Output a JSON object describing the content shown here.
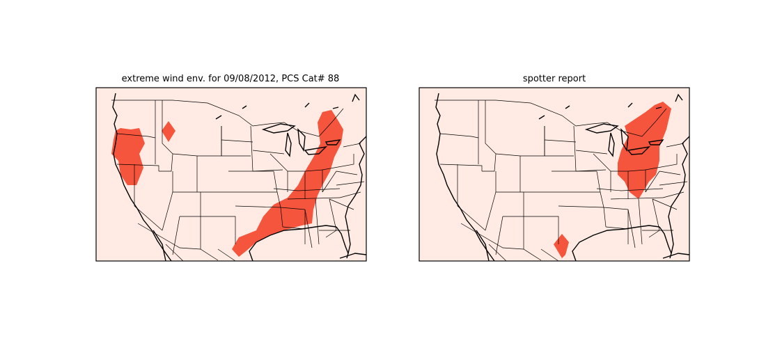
{
  "panels": [
    {
      "title": "extreme wind env. for 09/08/2012, PCS Cat# 88",
      "content": "Map of contiguous US with red-shaded extreme wind environment regions: Pacific Northwest (Oregon/Washington coast), a small diamond over western Montana/Idaho, and a broad band from the Texas coast through the Gulf states and Southeast up the Appalachians to New England."
    },
    {
      "title": "spotter report",
      "content": "Map of contiguous US with red-shaded spotter report regions over the Mid-Atlantic and Northeast (Pennsylvania to New England, down to the Carolinas) and a small area on the upper Texas coast."
    }
  ],
  "colors": {
    "background": "#ffebe3",
    "region_fill": "#f5553c",
    "border": "#000000"
  }
}
